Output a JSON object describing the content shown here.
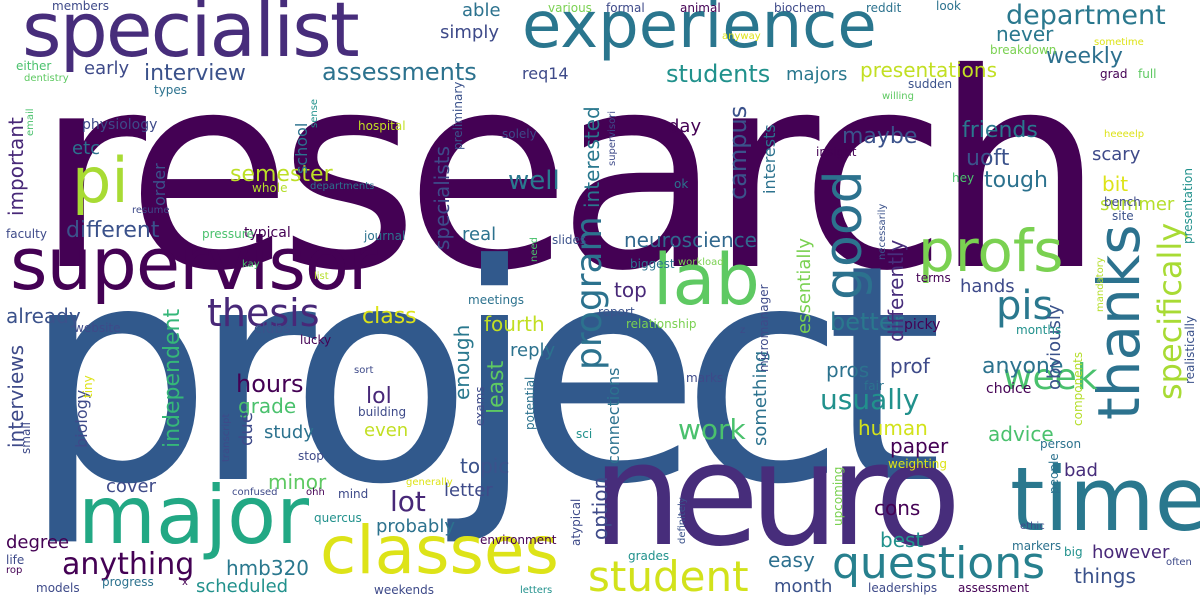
{
  "words": [
    {
      "text": "research",
      "color": "#440154"
    },
    {
      "text": "project",
      "color": "#31598c"
    },
    {
      "text": "neuro",
      "color": "#472d7b"
    },
    {
      "text": "specialist",
      "color": "#472d7b"
    },
    {
      "text": "experience",
      "color": "#2a768e"
    },
    {
      "text": "supervisor",
      "color": "#440154"
    },
    {
      "text": "major",
      "color": "#22a884"
    },
    {
      "text": "lab",
      "color": "#5ec962"
    },
    {
      "text": "thanks",
      "color": "#2c728e"
    },
    {
      "text": "time",
      "color": "#2a788e"
    },
    {
      "text": "classes",
      "color": "#dde318"
    },
    {
      "text": "profs",
      "color": "#7ad151"
    },
    {
      "text": "pi",
      "color": "#a8db34"
    },
    {
      "text": "good",
      "color": "#2c728e"
    },
    {
      "text": "student",
      "color": "#d2e21b"
    },
    {
      "text": "questions",
      "color": "#27808e"
    },
    {
      "text": "week",
      "color": "#4ac16d"
    },
    {
      "text": "thesis",
      "color": "#482878"
    },
    {
      "text": "pis",
      "color": "#2a788e"
    },
    {
      "text": "program",
      "color": "#2c728e"
    },
    {
      "text": "specifically",
      "color": "#a8db34"
    },
    {
      "text": "anything",
      "color": "#440154"
    },
    {
      "text": "interview",
      "color": "#3b528b"
    },
    {
      "text": "assessments",
      "color": "#2c728e"
    },
    {
      "text": "department",
      "color": "#2a788e"
    },
    {
      "text": "students",
      "color": "#21918c"
    },
    {
      "text": "presentations",
      "color": "#c2df23"
    },
    {
      "text": "weekly",
      "color": "#2d708e"
    },
    {
      "text": "class",
      "color": "#dde318"
    },
    {
      "text": "well",
      "color": "#2a788e"
    },
    {
      "text": "hours",
      "color": "#440154"
    },
    {
      "text": "lot",
      "color": "#482878"
    },
    {
      "text": "usually",
      "color": "#21918c"
    },
    {
      "text": "better",
      "color": "#2a788e"
    },
    {
      "text": "work",
      "color": "#4ac16d"
    },
    {
      "text": "campus",
      "color": "#3b528b"
    },
    {
      "text": "neuroscience",
      "color": "#31688e"
    },
    {
      "text": "different",
      "color": "#3b528b"
    },
    {
      "text": "semester",
      "color": "#bddf26"
    },
    {
      "text": "independent",
      "color": "#35b779"
    },
    {
      "text": "interviews",
      "color": "#3e4a89"
    },
    {
      "text": "friends",
      "color": "#2a788e"
    },
    {
      "text": "tough",
      "color": "#2c728e"
    },
    {
      "text": "uoft",
      "color": "#3b528b"
    },
    {
      "text": "maybe",
      "color": "#3b528b"
    },
    {
      "text": "anyone",
      "color": "#2c728e"
    },
    {
      "text": "advice",
      "color": "#4ac16d"
    },
    {
      "text": "grade",
      "color": "#4ac16d"
    },
    {
      "text": "minor",
      "color": "#5ec962"
    },
    {
      "text": "hmb320",
      "color": "#2a788e"
    },
    {
      "text": "easy",
      "color": "#2d708e"
    },
    {
      "text": "things",
      "color": "#3b528b"
    },
    {
      "text": "interested",
      "color": "#2a788e"
    },
    {
      "text": "specialists",
      "color": "#3e4a89"
    },
    {
      "text": "option",
      "color": "#3e4a89"
    },
    {
      "text": "topic",
      "color": "#3b528b"
    },
    {
      "text": "fourth",
      "color": "#c2df23"
    },
    {
      "text": "least",
      "color": "#5ec962"
    },
    {
      "text": "enough",
      "color": "#2a788e"
    },
    {
      "text": "lol",
      "color": "#482878"
    },
    {
      "text": "human",
      "color": "#d2e21b"
    },
    {
      "text": "paper",
      "color": "#440154"
    },
    {
      "text": "cons",
      "color": "#440154"
    },
    {
      "text": "best",
      "color": "#21918c"
    },
    {
      "text": "bad",
      "color": "#472d7b"
    },
    {
      "text": "however",
      "color": "#482878"
    },
    {
      "text": "pros",
      "color": "#2c728e"
    },
    {
      "text": "prof",
      "color": "#3e4a89"
    },
    {
      "text": "important",
      "color": "#482878"
    },
    {
      "text": "never",
      "color": "#2a788e"
    },
    {
      "text": "reply",
      "color": "#2c728e"
    },
    {
      "text": "real",
      "color": "#2c728e"
    },
    {
      "text": "early",
      "color": "#3e4a89"
    },
    {
      "text": "simply",
      "color": "#3e4a89"
    },
    {
      "text": "able",
      "color": "#2c728e"
    },
    {
      "text": "top",
      "color": "#482878"
    },
    {
      "text": "day",
      "color": "#440154"
    },
    {
      "text": "etc",
      "color": "#2c728e"
    },
    {
      "text": "bit",
      "color": "#dde318"
    },
    {
      "text": "scary",
      "color": "#3e4a89"
    },
    {
      "text": "hands",
      "color": "#3e4a89"
    },
    {
      "text": "obviously",
      "color": "#3b528b"
    },
    {
      "text": "already",
      "color": "#3b528b"
    },
    {
      "text": "summer",
      "color": "#b5de2b"
    },
    {
      "text": "month",
      "color": "#3b528b"
    },
    {
      "text": "majors",
      "color": "#2a788e"
    },
    {
      "text": "letter",
      "color": "#3e4a89"
    },
    {
      "text": "probably",
      "color": "#2c728e"
    },
    {
      "text": "even",
      "color": "#c2df23"
    },
    {
      "text": "study",
      "color": "#2c728e"
    },
    {
      "text": "cover",
      "color": "#3e4a89"
    },
    {
      "text": "degree",
      "color": "#440154"
    },
    {
      "text": "due",
      "color": "#3e4a89"
    },
    {
      "text": "scheduled",
      "color": "#21918c"
    },
    {
      "text": "req14",
      "color": "#3e4a89"
    },
    {
      "text": "order",
      "color": "#3b528b"
    },
    {
      "text": "school",
      "color": "#2c728e"
    },
    {
      "text": "something",
      "color": "#2c728e"
    },
    {
      "text": "essentially",
      "color": "#7ad151"
    },
    {
      "text": "differently",
      "color": "#472d7b"
    },
    {
      "text": "interests",
      "color": "#2c728e"
    },
    {
      "text": "connections",
      "color": "#2c728e"
    },
    {
      "text": "biology",
      "color": "#3e4a89"
    },
    {
      "text": "physiology",
      "color": "#3e4a89"
    },
    {
      "text": "typical",
      "color": "#440154"
    },
    {
      "text": "clubs",
      "color": "#3b528b"
    },
    {
      "text": "members",
      "color": "#3e4a89"
    },
    {
      "text": "various",
      "color": "#7ad151"
    },
    {
      "text": "formal",
      "color": "#3e4a89"
    },
    {
      "text": "animal",
      "color": "#440154"
    },
    {
      "text": "biochem",
      "color": "#3e4a89"
    },
    {
      "text": "reddit",
      "color": "#2c728e"
    },
    {
      "text": "look",
      "color": "#2c728e"
    },
    {
      "text": "anyway",
      "color": "#dde318"
    },
    {
      "text": "breakdown",
      "color": "#7ad151"
    },
    {
      "text": "sometime",
      "color": "#dde318"
    },
    {
      "text": "grad",
      "color": "#440154"
    },
    {
      "text": "full",
      "color": "#5ec962"
    },
    {
      "text": "sudden",
      "color": "#3b528b"
    },
    {
      "text": "willing",
      "color": "#5ec962"
    },
    {
      "text": "either",
      "color": "#4ac16d"
    },
    {
      "text": "dentistry",
      "color": "#5ec962"
    },
    {
      "text": "types",
      "color": "#2c728e"
    },
    {
      "text": "email",
      "color": "#4ac16d"
    },
    {
      "text": "sense",
      "color": "#21918c"
    },
    {
      "text": "hospital",
      "color": "#c2df23"
    },
    {
      "text": "solely",
      "color": "#3e4a89"
    },
    {
      "text": "preliminary",
      "color": "#3b528b"
    },
    {
      "text": "supervisori",
      "color": "#3e4a89"
    },
    {
      "text": "insight",
      "color": "#440154"
    },
    {
      "text": "hey",
      "color": "#4ac16d"
    },
    {
      "text": "necessarily",
      "color": "#3b528b"
    },
    {
      "text": "ok",
      "color": "#2c728e"
    },
    {
      "text": "heeeelp",
      "color": "#dde318"
    },
    {
      "text": "bench",
      "color": "#3e4a89"
    },
    {
      "text": "site",
      "color": "#3b528b"
    },
    {
      "text": "presentation",
      "color": "#21918c"
    },
    {
      "text": "whole",
      "color": "#b5de2b"
    },
    {
      "text": "departments",
      "color": "#2c728e"
    },
    {
      "text": "resume",
      "color": "#3e4a89"
    },
    {
      "text": "faculty",
      "color": "#3e4a89"
    },
    {
      "text": "pressure",
      "color": "#4ac16d"
    },
    {
      "text": "journal",
      "color": "#2c728e"
    },
    {
      "text": "need",
      "color": "#4ac16d"
    },
    {
      "text": "slides",
      "color": "#3b528b"
    },
    {
      "text": "biggest",
      "color": "#2c728e"
    },
    {
      "text": "workload",
      "color": "#7ad151"
    },
    {
      "text": "mandatory",
      "color": "#b5de2b"
    },
    {
      "text": "terms",
      "color": "#440154"
    },
    {
      "text": "kay",
      "color": "#4ac16d"
    },
    {
      "text": "list",
      "color": "#b5de2b"
    },
    {
      "text": "meetings",
      "color": "#2c728e"
    },
    {
      "text": "report",
      "color": "#3b528b"
    },
    {
      "text": "relationship",
      "color": "#7ad151"
    },
    {
      "text": "micromanager",
      "color": "#3e4a89"
    },
    {
      "text": "z",
      "color": "#3e4a89"
    },
    {
      "text": "picky",
      "color": "#440154"
    },
    {
      "text": "months",
      "color": "#21918c"
    },
    {
      "text": "realistically",
      "color": "#3b528b"
    },
    {
      "text": "website",
      "color": "#3e4a89"
    },
    {
      "text": "lucky",
      "color": "#440154"
    },
    {
      "text": "sort",
      "color": "#3e4a89"
    },
    {
      "text": "tiny",
      "color": "#dde318"
    },
    {
      "text": "small",
      "color": "#3e4a89"
    },
    {
      "text": "potential",
      "color": "#2c728e"
    },
    {
      "text": "exams",
      "color": "#3e4a89"
    },
    {
      "text": "marks",
      "color": "#3e4a89"
    },
    {
      "text": "sci",
      "color": "#21918c"
    },
    {
      "text": "fair",
      "color": "#2c728e"
    },
    {
      "text": "choice",
      "color": "#440154"
    },
    {
      "text": "components",
      "color": "#b5de2b"
    },
    {
      "text": "building",
      "color": "#3e4a89"
    },
    {
      "text": "transcript",
      "color": "#3e4a89"
    },
    {
      "text": "stop",
      "color": "#3e4a89"
    },
    {
      "text": "weighting",
      "color": "#dde318"
    },
    {
      "text": "person",
      "color": "#2c728e"
    },
    {
      "text": "people",
      "color": "#2c728e"
    },
    {
      "text": "atypical",
      "color": "#3e4a89"
    },
    {
      "text": "generally",
      "color": "#dde318"
    },
    {
      "text": "confused",
      "color": "#3e4a89"
    },
    {
      "text": "ohh",
      "color": "#440154"
    },
    {
      "text": "mind",
      "color": "#3e4a89"
    },
    {
      "text": "quercus",
      "color": "#21918c"
    },
    {
      "text": "environment",
      "color": "#440154"
    },
    {
      "text": "definitely",
      "color": "#3b528b"
    },
    {
      "text": "upcoming",
      "color": "#7ad151"
    },
    {
      "text": "ethic",
      "color": "#3e4a89"
    },
    {
      "text": "big",
      "color": "#21918c"
    },
    {
      "text": "markers",
      "color": "#2c728e"
    },
    {
      "text": "often",
      "color": "#3e4a89"
    },
    {
      "text": "life",
      "color": "#3e4a89"
    },
    {
      "text": "rop",
      "color": "#440154"
    },
    {
      "text": "progress",
      "color": "#2c728e"
    },
    {
      "text": "models",
      "color": "#3e4a89"
    },
    {
      "text": "x",
      "color": "#440154"
    },
    {
      "text": "weekends",
      "color": "#3e4a89"
    },
    {
      "text": "letters",
      "color": "#21918c"
    },
    {
      "text": "grades",
      "color": "#21918c"
    },
    {
      "text": "leaderships",
      "color": "#3e4a89"
    },
    {
      "text": "assessment",
      "color": "#440154"
    }
  ]
}
